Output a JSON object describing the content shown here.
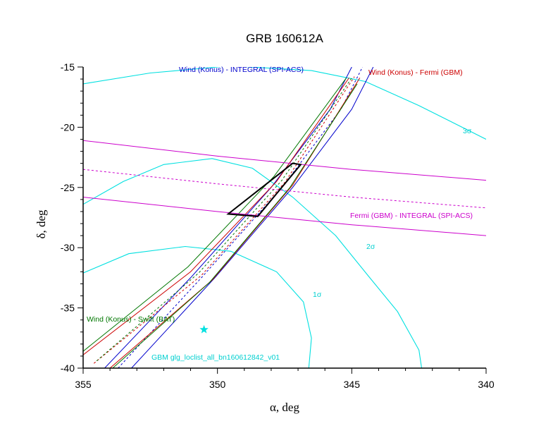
{
  "chart_data": {
    "type": "line",
    "title": "GRB 160612A",
    "xlabel": "α, deg",
    "ylabel": "δ, deg",
    "xlim": [
      355,
      340
    ],
    "ylim": [
      -40,
      -15
    ],
    "x_ticks": [
      355,
      350,
      345,
      340
    ],
    "y_ticks": [
      -15,
      -20,
      -25,
      -30,
      -35,
      -40
    ],
    "grid": false,
    "colors": {
      "konus_integral": "#0000cc",
      "konus_fermi": "#cc0000",
      "konus_swift": "#007700",
      "fermi_integral": "#cc00cc",
      "gbm_contours": "#00e0e0",
      "error_box": "#000000",
      "star": "#00e0e0"
    },
    "series": [
      {
        "name": "Wind (Konus) - INTEGRAL (SPI-ACS)",
        "lines": [
          {
            "style": "solid",
            "x": [
              354.2,
              351.0,
              348.0,
              345.8,
              345.0
            ],
            "y": [
              -40,
              -32.5,
              -25,
              -18.5,
              -15
            ]
          },
          {
            "style": "dashed",
            "x": [
              353.7,
              350.6,
              347.6,
              345.4,
              344.6
            ],
            "y": [
              -40,
              -32.5,
              -25,
              -18.5,
              -15
            ]
          },
          {
            "style": "solid",
            "x": [
              353.2,
              350.1,
              347.2,
              345.0,
              344.2
            ],
            "y": [
              -40,
              -32.5,
              -25,
              -18.5,
              -15
            ]
          }
        ]
      },
      {
        "name": "Wind (Konus) - Fermi (GBM)",
        "lines": [
          {
            "style": "solid",
            "x": [
              355.0,
              351.0,
              347.8,
              345.1
            ],
            "y": [
              -38.9,
              -32.0,
              -24.5,
              -15.9
            ]
          },
          {
            "style": "dashed",
            "x": [
              354.6,
              350.6,
              347.5,
              344.9
            ],
            "y": [
              -39.6,
              -32.3,
              -24.6,
              -15.8
            ]
          },
          {
            "style": "solid",
            "x": [
              354.0,
              350.2,
              347.2,
              344.7
            ],
            "y": [
              -40.0,
              -32.7,
              -24.8,
              -15.9
            ]
          }
        ]
      },
      {
        "name": "Wind (Konus) - Swift (BAT)",
        "lines": [
          {
            "style": "solid",
            "x": [
              355.0,
              351.1,
              347.9,
              345.2
            ],
            "y": [
              -38.6,
              -31.6,
              -24.1,
              -15.9
            ]
          },
          {
            "style": "dashed",
            "x": [
              354.5,
              350.7,
              347.6,
              345.0
            ],
            "y": [
              -39.4,
              -32.1,
              -24.4,
              -15.9
            ]
          },
          {
            "style": "solid",
            "x": [
              353.9,
              350.3,
              347.3,
              344.8
            ],
            "y": [
              -40.0,
              -32.9,
              -25.0,
              -16.4
            ]
          }
        ]
      },
      {
        "name": "Fermi (GBM) - INTEGRAL (SPI-ACS)",
        "lines": [
          {
            "style": "solid",
            "x": [
              355.0,
              350.0,
              345.0,
              340.0
            ],
            "y": [
              -21.1,
              -22.4,
              -23.5,
              -24.4
            ]
          },
          {
            "style": "dashed",
            "x": [
              355.0,
              350.0,
              345.0,
              340.0
            ],
            "y": [
              -23.5,
              -24.7,
              -25.8,
              -26.7
            ]
          },
          {
            "style": "solid",
            "x": [
              355.0,
              350.0,
              345.0,
              340.0
            ],
            "y": [
              -25.8,
              -27.0,
              -28.1,
              -29.0
            ]
          }
        ]
      },
      {
        "name": "GBM glg_loclist_all_bn160612842_v01",
        "contours": [
          {
            "level": "1σ",
            "x": [
              355.0,
              353.3,
              351.2,
              349.5,
              347.8,
              346.8,
              346.5,
              346.6
            ],
            "y": [
              -32.1,
              -30.5,
              -29.9,
              -30.3,
              -32.0,
              -34.5,
              -37.5,
              -40.0
            ]
          },
          {
            "level": "2σ",
            "x": [
              355.0,
              353.5,
              352.0,
              350.2,
              348.7,
              347.2,
              345.6,
              344.4,
              343.3,
              342.5,
              342.4
            ],
            "y": [
              -26.4,
              -24.5,
              -23.1,
              -22.6,
              -23.4,
              -25.8,
              -29.0,
              -32.3,
              -35.3,
              -38.5,
              -40.0
            ]
          },
          {
            "level": "3σ",
            "x": [
              355.0,
              352.5,
              349.5,
              346.5,
              344.5,
              342.5,
              340.0
            ],
            "y": [
              -16.4,
              -15.5,
              -14.9,
              -15.3,
              -16.2,
              -18.2,
              -21.0
            ]
          }
        ]
      },
      {
        "name": "error box",
        "x": [
          349.6,
          347.2,
          346.9,
          348.5,
          349.6
        ],
        "y": [
          -27.2,
          -23.0,
          -23.1,
          -27.4,
          -27.2
        ]
      }
    ],
    "markers": [
      {
        "shape": "star",
        "x": 350.5,
        "y": -36.8
      }
    ],
    "annotations": {
      "konus_integral": "Wind (Konus) - INTEGRAL (SPI-ACS)",
      "konus_fermi": "Wind (Konus) - Fermi (GBM)",
      "fermi_integral": "Fermi (GBM) - INTEGRAL (SPI-ACS)",
      "konus_swift": "Wind (Konus) - Swift (BAT)",
      "gbm": "GBM glg_loclist_all_bn160612842_v01",
      "sigma1": "1σ",
      "sigma2": "2σ",
      "sigma3": "3σ"
    }
  }
}
